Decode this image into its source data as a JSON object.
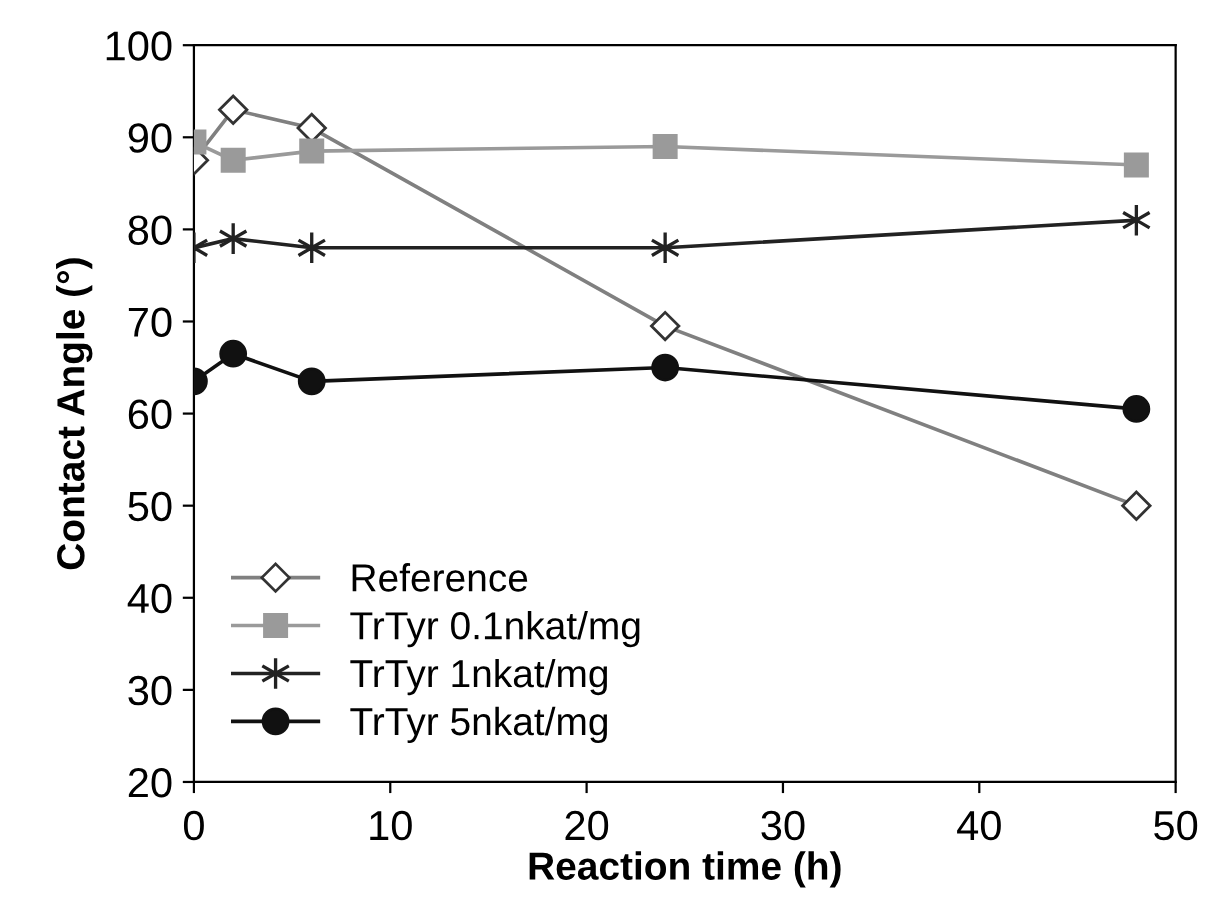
{
  "chart_data": {
    "type": "line",
    "xlabel": "Reaction time (h)",
    "ylabel": "Contact Angle (°)",
    "x": [
      0,
      2,
      6,
      24,
      48
    ],
    "series": [
      {
        "name": "Reference",
        "color": "#808080",
        "marker": "diamond",
        "values": [
          87.5,
          93,
          91,
          69.5,
          50
        ]
      },
      {
        "name": "TrTyr 0.1nkat/mg",
        "color": "#9a9a9a",
        "marker": "square",
        "values": [
          89.5,
          87.5,
          88.5,
          89,
          87
        ]
      },
      {
        "name": "TrTyr 1nkat/mg",
        "color": "#222222",
        "marker": "cross",
        "values": [
          78,
          79,
          78,
          78,
          81
        ]
      },
      {
        "name": "TrTyr 5nkat/mg",
        "color": "#111111",
        "marker": "circle",
        "values": [
          63.5,
          66.5,
          63.5,
          65,
          60.5
        ]
      }
    ],
    "xlim": [
      0,
      50
    ],
    "xticks": [
      0,
      10,
      20,
      30,
      40,
      50
    ],
    "ylim": [
      20,
      100
    ],
    "yticks": [
      20,
      30,
      40,
      50,
      60,
      70,
      80,
      90,
      100
    ],
    "grid": false,
    "legend": "bottom left",
    "line_style": "solid"
  }
}
